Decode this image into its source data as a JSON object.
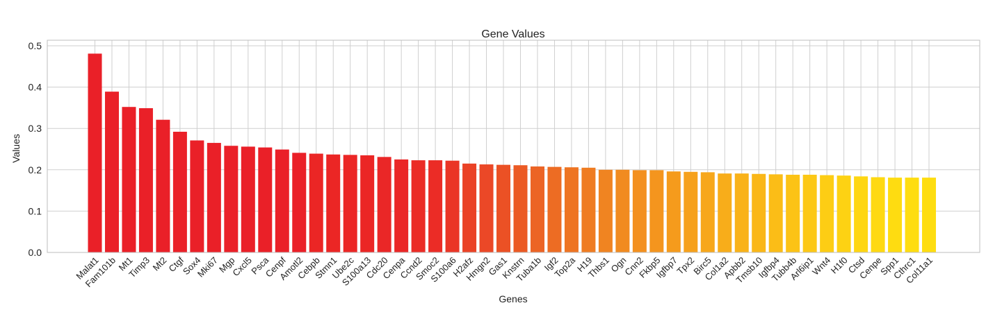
{
  "chart_data": {
    "type": "bar",
    "title": "Gene Values",
    "xlabel": "Genes",
    "ylabel": "Values",
    "ylim": [
      0,
      0.5
    ],
    "yticks": [
      "0.0",
      "0.1",
      "0.2",
      "0.3",
      "0.4",
      "0.5"
    ],
    "grid": true,
    "categories": [
      "Malat1",
      "Fam101b",
      "Mt1",
      "Timp3",
      "Mt2",
      "Ctgf",
      "Sox4",
      "Mki67",
      "Mgp",
      "Cxcl5",
      "Psca",
      "Cenpf",
      "Amotl2",
      "Cebpb",
      "Stmn1",
      "Ube2c",
      "S100a13",
      "Cdc20",
      "Cenpa",
      "Ccnd2",
      "Smoc2",
      "S100a6",
      "H2afz",
      "Hmgn2",
      "Gas1",
      "Knstrn",
      "Tuba1b",
      "Igf2",
      "Top2a",
      "H19",
      "Thbs1",
      "Ogn",
      "Cnn2",
      "Fkbp5",
      "Igfbp7",
      "Tpx2",
      "Birc5",
      "Col1a2",
      "Apbb2",
      "Tmsb10",
      "Igfbp4",
      "Tubb4b",
      "Arl6ip1",
      "Wnt4",
      "H1f0",
      "Ctsd",
      "Cenpe",
      "Spp1",
      "Cthrc1",
      "Col11a1"
    ],
    "values": [
      0.481,
      0.389,
      0.352,
      0.349,
      0.321,
      0.292,
      0.271,
      0.265,
      0.258,
      0.256,
      0.254,
      0.249,
      0.241,
      0.239,
      0.237,
      0.236,
      0.235,
      0.231,
      0.225,
      0.223,
      0.223,
      0.222,
      0.215,
      0.213,
      0.212,
      0.211,
      0.208,
      0.207,
      0.206,
      0.205,
      0.2,
      0.2,
      0.199,
      0.199,
      0.196,
      0.195,
      0.194,
      0.191,
      0.191,
      0.19,
      0.189,
      0.188,
      0.188,
      0.187,
      0.186,
      0.184,
      0.182,
      0.181,
      0.181,
      0.181
    ],
    "colors": [
      "#ea2028",
      "#ea2028",
      "#ea2028",
      "#ea2028",
      "#ea2028",
      "#ea2028",
      "#ea2028",
      "#ea2028",
      "#ea2028",
      "#ea2028",
      "#ea2028",
      "#ea2028",
      "#ea2028",
      "#eb2625",
      "#eb2625",
      "#eb2625",
      "#eb2625",
      "#ea2727",
      "#ea2727",
      "#eb2c26",
      "#eb2c26",
      "#ea3526",
      "#ea4226",
      "#eb4827",
      "#eb5125",
      "#eb5a24",
      "#ec6425",
      "#ed6c23",
      "#ee7422",
      "#ef7c22",
      "#f08421",
      "#f18b20",
      "#f3901f",
      "#f4951e",
      "#f59b1c",
      "#f6a11c",
      "#f7a71b",
      "#f8ad1a",
      "#f9b219",
      "#fab718",
      "#fbbd17",
      "#fcc316",
      "#fcc816",
      "#fdcd14",
      "#fdd213",
      "#fed612",
      "#fed912",
      "#fedc11",
      "#fedd10",
      "#fedd10"
    ]
  }
}
